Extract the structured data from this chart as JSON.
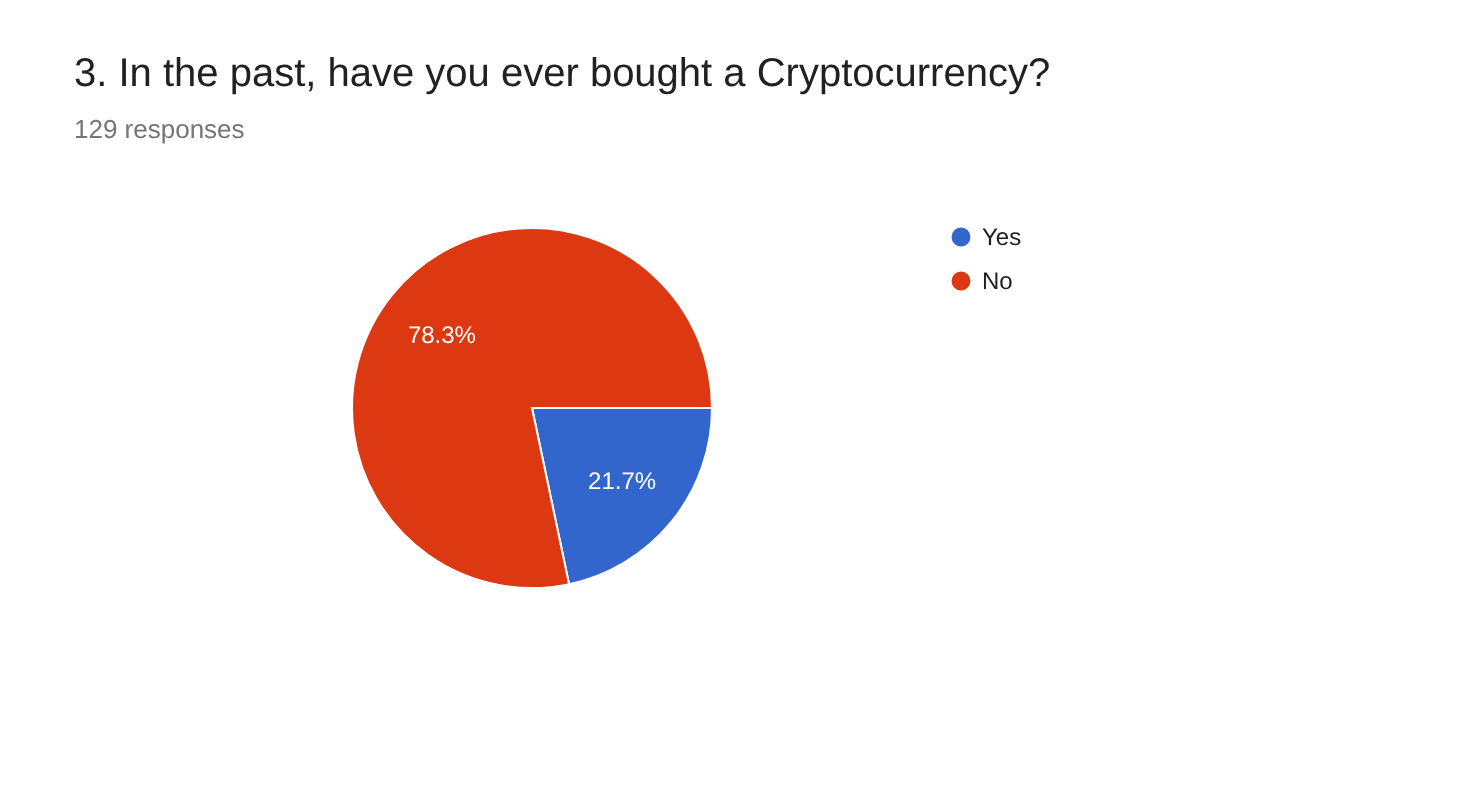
{
  "chart_data": {
    "type": "pie",
    "title": "3. In the past, have you ever bought a Cryptocurrency?",
    "subtitle": "129 responses",
    "categories": [
      "Yes",
      "No"
    ],
    "values": [
      21.7,
      78.3
    ],
    "colors": [
      "#3366cc",
      "#dc3912"
    ],
    "value_labels": [
      "21.7%",
      "78.3%"
    ],
    "legend": "right"
  }
}
